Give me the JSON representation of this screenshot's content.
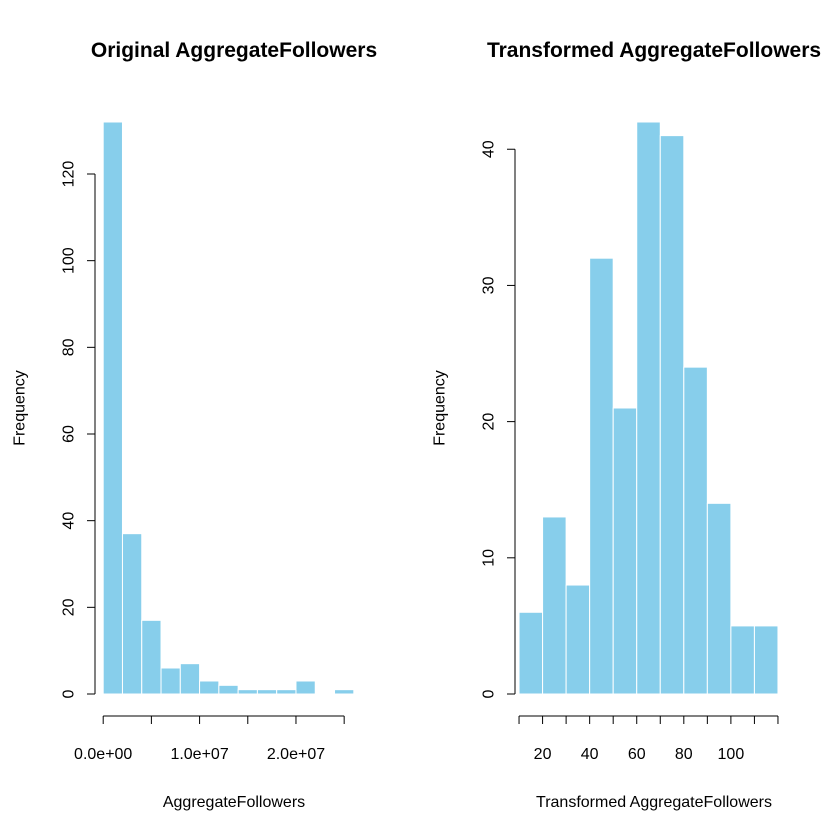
{
  "colors": {
    "bar_fill": "#87CEEB",
    "bar_border": "#FFFFFF",
    "axis": "#000000",
    "background": "#FFFFFF"
  },
  "chart_data": [
    {
      "type": "bar",
      "title": "Original AggregateFollowers",
      "xlabel": "AggregateFollowers",
      "ylabel": "Frequency",
      "bin_edges": [
        0,
        2000000,
        4000000,
        6000000,
        8000000,
        10000000,
        12000000,
        14000000,
        16000000,
        18000000,
        20000000,
        22000000,
        24000000,
        26000000
      ],
      "values": [
        132,
        37,
        17,
        6,
        7,
        3,
        2,
        1,
        1,
        1,
        3,
        0,
        1
      ],
      "xticks": [
        0,
        5000000,
        10000000,
        15000000,
        20000000,
        25000000
      ],
      "xtick_labels": [
        "0.0e+00",
        "",
        "1.0e+07",
        "",
        "2.0e+07",
        ""
      ],
      "yticks": [
        0,
        20,
        40,
        60,
        80,
        100,
        120
      ],
      "ytick_labels": [
        "0",
        "20",
        "40",
        "60",
        "80",
        "100",
        "120"
      ],
      "xlim": [
        -539000,
        26539000
      ],
      "ylim": [
        0,
        132
      ],
      "grid": false
    },
    {
      "type": "bar",
      "title": "Transformed AggregateFollowers",
      "xlabel": "Transformed AggregateFollowers",
      "ylabel": "Frequency",
      "bin_edges": [
        10,
        20,
        30,
        40,
        50,
        60,
        70,
        80,
        90,
        100,
        110,
        120
      ],
      "values": [
        6,
        13,
        8,
        32,
        21,
        42,
        41,
        24,
        14,
        5,
        5
      ],
      "xticks": [
        10,
        20,
        30,
        40,
        50,
        60,
        70,
        80,
        90,
        100,
        110,
        120
      ],
      "xtick_labels": [
        "",
        "20",
        "",
        "40",
        "",
        "60",
        "",
        "80",
        "",
        "100",
        "",
        ""
      ],
      "yticks": [
        0,
        10,
        20,
        30,
        40
      ],
      "ytick_labels": [
        "0",
        "10",
        "20",
        "30",
        "40"
      ],
      "xlim": [
        9.56,
        120.44
      ],
      "ylim": [
        0,
        42
      ],
      "grid": false
    }
  ]
}
